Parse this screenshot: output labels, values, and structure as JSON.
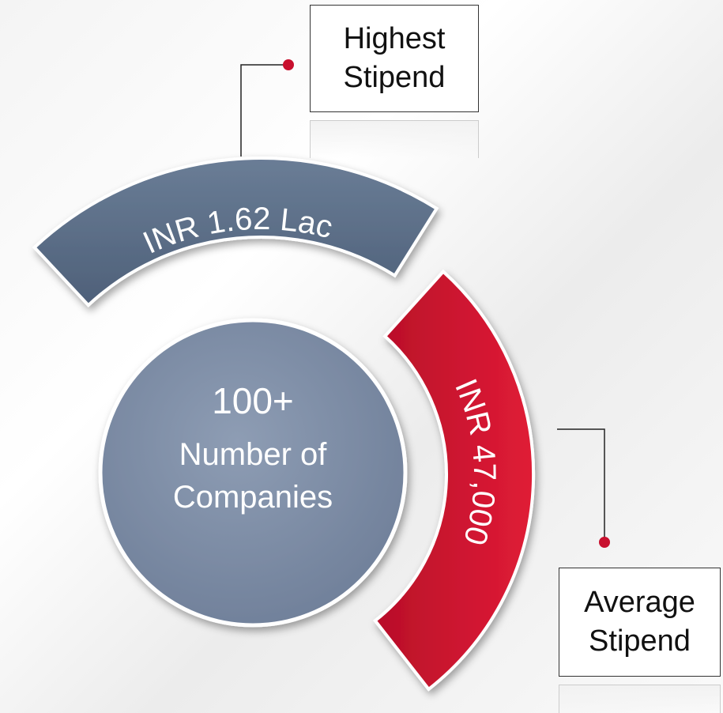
{
  "highest": {
    "label": "Highest Stipend",
    "value": "INR 1.62 Lac"
  },
  "average": {
    "label": "Average Stipend",
    "value": "INR 47,000"
  },
  "companies": {
    "value": "100+",
    "label": "Number of Companies"
  }
}
